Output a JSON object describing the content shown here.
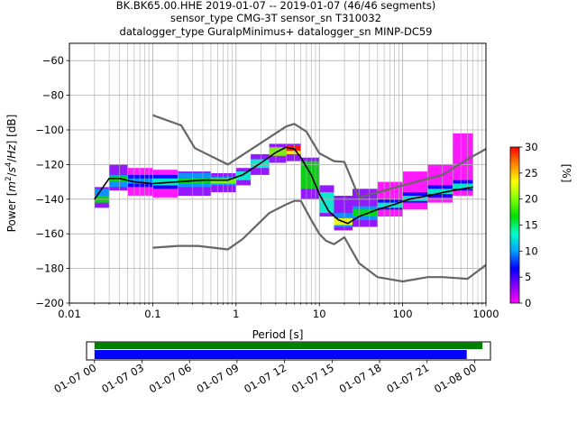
{
  "title_lines": [
    "BK.BK65.00.HHE   2019-01-07 -- 2019-01-07  (46/46 segments)",
    "sensor_type CMG-3T sensor_sn T310032",
    "datalogger_type GuralpMinimus+ datalogger_sn MINP-DC59"
  ],
  "chart_data": [
    {
      "type": "heatmap",
      "name": "ppsd",
      "xlabel": "Period [s]",
      "ylabel_parts": [
        "Power [",
        "m",
        "2",
        "/",
        "s",
        "4",
        "/",
        "Hz",
        "] [dB]"
      ],
      "xscale": "log",
      "xlim": [
        0.01,
        1000
      ],
      "ylim": [
        -200,
        -50
      ],
      "x_ticks": [
        0.01,
        0.1,
        1,
        10,
        100,
        1000
      ],
      "x_tick_labels": [
        "0.01",
        "0.1",
        "1",
        "10",
        "100",
        "1000"
      ],
      "y_ticks": [
        -200,
        -180,
        -160,
        -140,
        -120,
        -100,
        -80,
        -60
      ],
      "y_tick_labels": [
        "−200",
        "−180",
        "−160",
        "−140",
        "−120",
        "−100",
        "−80",
        "−60"
      ],
      "grid": true,
      "colormap": [
        "#ff00ff",
        "#8800ff",
        "#0000ff",
        "#00a0ff",
        "#00ffc8",
        "#00e000",
        "#80ff00",
        "#ffff00",
        "#ff8800",
        "#ff0000"
      ],
      "colorbar": {
        "label": "[%]",
        "range": [
          0,
          30
        ],
        "ticks": [
          0,
          5,
          10,
          15,
          20,
          25,
          30
        ],
        "tick_labels": [
          "0",
          "5",
          "10",
          "15",
          "20",
          "25",
          "30"
        ]
      },
      "mean_curve": {
        "color": "#000000",
        "x": [
          0.02,
          0.03,
          0.04,
          0.06,
          0.1,
          0.2,
          0.4,
          0.8,
          1.2,
          2,
          3,
          4,
          5,
          6,
          8,
          10,
          13,
          17,
          22,
          30,
          50,
          80,
          120,
          200,
          400,
          700
        ],
        "y": [
          -140,
          -128,
          -128,
          -130,
          -131,
          -130,
          -129,
          -129,
          -126,
          -119,
          -113,
          -110,
          -111,
          -116,
          -126,
          -137,
          -147,
          -152,
          -154,
          -150,
          -146,
          -143,
          -140,
          -138,
          -135,
          -133
        ]
      },
      "nlnm": {
        "color": "#666666",
        "x": [
          0.1,
          0.2,
          0.35,
          0.8,
          1.2,
          2.5,
          4,
          5,
          6,
          8,
          10,
          12,
          15,
          20,
          30,
          50,
          100,
          200,
          300,
          600,
          1000
        ],
        "y": [
          -168,
          -167,
          -167,
          -169,
          -163,
          -148,
          -143,
          -141,
          -141,
          -152,
          -160,
          -164,
          -166,
          -162,
          -177,
          -185,
          -187.5,
          -185,
          -185,
          -186,
          -178
        ]
      },
      "nhnm": {
        "color": "#666666",
        "x": [
          0.1,
          0.22,
          0.32,
          0.8,
          4,
          5,
          7,
          10,
          15,
          20,
          30,
          100,
          300,
          600,
          1000
        ],
        "y": [
          -91.5,
          -97.4,
          -110.5,
          -120,
          -98,
          -96.5,
          -101,
          -113.5,
          -118,
          -118.5,
          -139,
          -132,
          -126,
          -117,
          -111
        ]
      },
      "density": [
        {
          "x0": 0.02,
          "x1": 0.03,
          "y0": -145,
          "y1": -133,
          "pct": 4
        },
        {
          "x0": 0.02,
          "x1": 0.03,
          "y0": -138,
          "y1": -134,
          "pct": 10
        },
        {
          "x0": 0.02,
          "x1": 0.03,
          "y0": -142,
          "y1": -138,
          "pct": 16
        },
        {
          "x0": 0.03,
          "x1": 0.05,
          "y0": -135,
          "y1": -120,
          "pct": 3
        },
        {
          "x0": 0.03,
          "x1": 0.05,
          "y0": -133,
          "y1": -126,
          "pct": 9
        },
        {
          "x0": 0.03,
          "x1": 0.05,
          "y0": -130,
          "y1": -127,
          "pct": 16
        },
        {
          "x0": 0.05,
          "x1": 0.1,
          "y0": -138,
          "y1": -122,
          "pct": 2
        },
        {
          "x0": 0.05,
          "x1": 0.1,
          "y0": -133,
          "y1": -126,
          "pct": 6
        },
        {
          "x0": 0.05,
          "x1": 0.1,
          "y0": -131,
          "y1": -128,
          "pct": 11
        },
        {
          "x0": 0.1,
          "x1": 0.2,
          "y0": -139,
          "y1": -123,
          "pct": 2
        },
        {
          "x0": 0.1,
          "x1": 0.2,
          "y0": -134,
          "y1": -126,
          "pct": 6
        },
        {
          "x0": 0.1,
          "x1": 0.2,
          "y0": -132,
          "y1": -128,
          "pct": 12
        },
        {
          "x0": 0.2,
          "x1": 0.5,
          "y0": -138,
          "y1": -124,
          "pct": 3
        },
        {
          "x0": 0.2,
          "x1": 0.5,
          "y0": -133,
          "y1": -125,
          "pct": 9
        },
        {
          "x0": 0.2,
          "x1": 0.5,
          "y0": -131,
          "y1": -128,
          "pct": 17
        },
        {
          "x0": 0.5,
          "x1": 1,
          "y0": -136,
          "y1": -125,
          "pct": 3
        },
        {
          "x0": 0.5,
          "x1": 1,
          "y0": -132,
          "y1": -127,
          "pct": 11
        },
        {
          "x0": 0.5,
          "x1": 1,
          "y0": -131,
          "y1": -128,
          "pct": 20
        },
        {
          "x0": 1,
          "x1": 1.5,
          "y0": -132,
          "y1": -122,
          "pct": 4
        },
        {
          "x0": 1,
          "x1": 1.5,
          "y0": -129,
          "y1": -124,
          "pct": 13
        },
        {
          "x0": 1.5,
          "x1": 2.5,
          "y0": -126,
          "y1": -114,
          "pct": 4
        },
        {
          "x0": 1.5,
          "x1": 2.5,
          "y0": -122,
          "y1": -117,
          "pct": 14
        },
        {
          "x0": 2.5,
          "x1": 4,
          "y0": -119,
          "y1": -108,
          "pct": 5
        },
        {
          "x0": 2.5,
          "x1": 4,
          "y0": -115,
          "y1": -110,
          "pct": 18
        },
        {
          "x0": 4,
          "x1": 6,
          "y0": -118,
          "y1": -108,
          "pct": 5
        },
        {
          "x0": 4,
          "x1": 6,
          "y0": -114,
          "y1": -109,
          "pct": 22
        },
        {
          "x0": 4,
          "x1": 6,
          "y0": -112,
          "y1": -109,
          "pct": 28
        },
        {
          "x0": 6,
          "x1": 10,
          "y0": -140,
          "y1": -116,
          "pct": 5
        },
        {
          "x0": 6,
          "x1": 10,
          "y0": -134,
          "y1": -118,
          "pct": 15
        },
        {
          "x0": 10,
          "x1": 15,
          "y0": -150,
          "y1": -132,
          "pct": 4
        },
        {
          "x0": 10,
          "x1": 15,
          "y0": -148,
          "y1": -136,
          "pct": 13
        },
        {
          "x0": 15,
          "x1": 25,
          "y0": -158,
          "y1": -138,
          "pct": 3
        },
        {
          "x0": 15,
          "x1": 25,
          "y0": -156,
          "y1": -148,
          "pct": 10
        },
        {
          "x0": 15,
          "x1": 25,
          "y0": -155,
          "y1": -151,
          "pct": 22
        },
        {
          "x0": 25,
          "x1": 50,
          "y0": -156,
          "y1": -134,
          "pct": 3
        },
        {
          "x0": 25,
          "x1": 50,
          "y0": -152,
          "y1": -144,
          "pct": 9
        },
        {
          "x0": 25,
          "x1": 50,
          "y0": -150,
          "y1": -146,
          "pct": 15
        },
        {
          "x0": 50,
          "x1": 100,
          "y0": -150,
          "y1": -130,
          "pct": 2
        },
        {
          "x0": 50,
          "x1": 100,
          "y0": -146,
          "y1": -140,
          "pct": 7
        },
        {
          "x0": 50,
          "x1": 100,
          "y0": -145,
          "y1": -142,
          "pct": 14
        },
        {
          "x0": 100,
          "x1": 200,
          "y0": -146,
          "y1": -124,
          "pct": 2
        },
        {
          "x0": 100,
          "x1": 200,
          "y0": -142,
          "y1": -136,
          "pct": 7
        },
        {
          "x0": 100,
          "x1": 200,
          "y0": -141,
          "y1": -138,
          "pct": 13
        },
        {
          "x0": 200,
          "x1": 400,
          "y0": -142,
          "y1": -120,
          "pct": 2
        },
        {
          "x0": 200,
          "x1": 400,
          "y0": -139,
          "y1": -132,
          "pct": 6
        },
        {
          "x0": 200,
          "x1": 400,
          "y0": -137,
          "y1": -134,
          "pct": 13
        },
        {
          "x0": 400,
          "x1": 700,
          "y0": -138,
          "y1": -102,
          "pct": 2
        },
        {
          "x0": 400,
          "x1": 700,
          "y0": -135,
          "y1": -129,
          "pct": 6
        },
        {
          "x0": 400,
          "x1": 700,
          "y0": -134,
          "y1": -131,
          "pct": 12
        }
      ]
    },
    {
      "type": "bar",
      "name": "data-coverage",
      "orientation": "horizontal",
      "time_range": [
        "2019-01-06T23:30",
        "2019-01-08T01:00"
      ],
      "x_ticks": [
        "2019-01-07T00:00",
        "2019-01-07T03:00",
        "2019-01-07T06:00",
        "2019-01-07T09:00",
        "2019-01-07T12:00",
        "2019-01-07T15:00",
        "2019-01-07T18:00",
        "2019-01-07T21:00",
        "2019-01-08T00:00"
      ],
      "x_tick_labels": [
        "01-07 00",
        "01-07 03",
        "01-07 06",
        "01-07 09",
        "01-07 12",
        "01-07 15",
        "01-07 18",
        "01-07 21",
        "01-08 00"
      ],
      "series": [
        {
          "color": "#008000",
          "start": "2019-01-07T00:00",
          "end": "2019-01-08T00:30"
        },
        {
          "color": "#0000ff",
          "start": "2019-01-07T00:00",
          "end": "2019-01-07T23:30"
        }
      ]
    }
  ]
}
